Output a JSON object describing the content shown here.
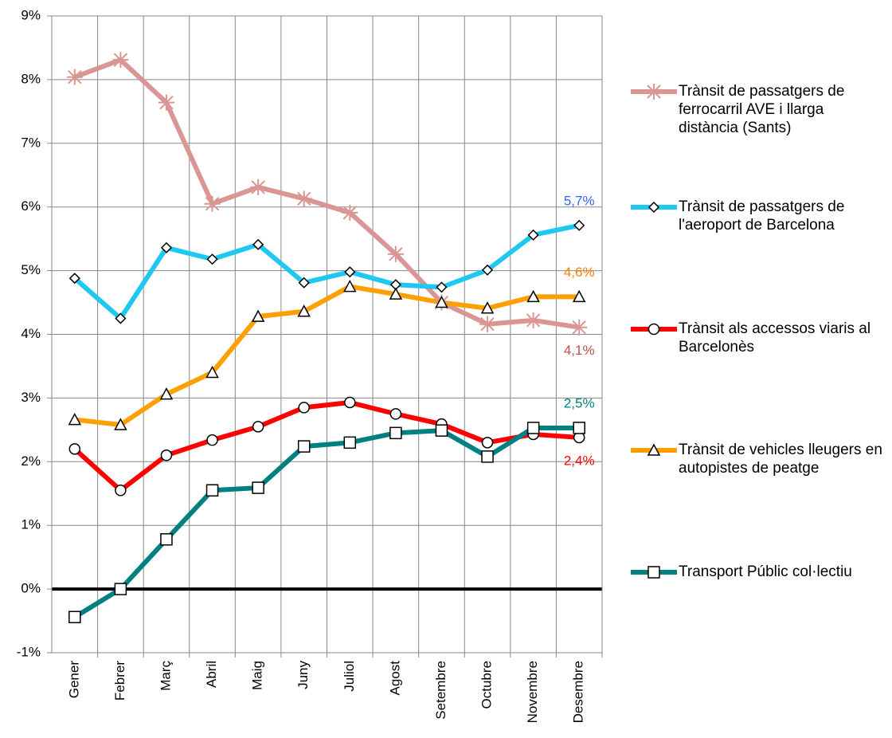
{
  "chart_data": {
    "type": "line",
    "categories": [
      "Gener",
      "Febrer",
      "Març",
      "Abril",
      "Maig",
      "Juny",
      "Juliol",
      "Agost",
      "Setembre",
      "Octubre",
      "Novembre",
      "Desembre"
    ],
    "ylim": [
      -1,
      9
    ],
    "yticks": [
      {
        "value": -1,
        "label": "-1%"
      },
      {
        "value": 0,
        "label": "0%"
      },
      {
        "value": 1,
        "label": "1%"
      },
      {
        "value": 2,
        "label": "2%"
      },
      {
        "value": 3,
        "label": "3%"
      },
      {
        "value": 4,
        "label": "4%"
      },
      {
        "value": 5,
        "label": "5%"
      },
      {
        "value": 6,
        "label": "6%"
      },
      {
        "value": 7,
        "label": "7%"
      },
      {
        "value": 8,
        "label": "8%"
      },
      {
        "value": 9,
        "label": "9%"
      }
    ],
    "grid": true,
    "legend": "right",
    "series": [
      {
        "name": "Trànsit de passatgers de ferrocarril AVE i llarga distància (Sants)",
        "color": "#d99694",
        "label_color": "#c0504d",
        "marker": "asterisk",
        "values": [
          8.04,
          8.31,
          7.64,
          6.05,
          6.31,
          6.13,
          5.91,
          5.26,
          4.5,
          4.16,
          4.22,
          4.11
        ],
        "value_labels": [
          null,
          null,
          null,
          null,
          null,
          null,
          null,
          null,
          null,
          null,
          null,
          "4,1%"
        ]
      },
      {
        "name": "Trànsit de passatgers de l'aeroport de Barcelona",
        "color": "#1ec8f0",
        "label_color": "#3366ff",
        "marker": "diamond",
        "values": [
          4.88,
          4.25,
          5.36,
          5.18,
          5.41,
          4.81,
          4.98,
          4.78,
          4.74,
          5.01,
          5.56,
          5.71
        ],
        "value_labels": [
          null,
          null,
          null,
          null,
          null,
          null,
          null,
          null,
          null,
          null,
          null,
          "5,7%"
        ]
      },
      {
        "name": "Trànsit als accessos viaris al Barcelonès",
        "color": "#ff0000",
        "label_color": "#ff0000",
        "marker": "circle",
        "values": [
          2.2,
          1.55,
          2.1,
          2.34,
          2.55,
          2.85,
          2.93,
          2.75,
          2.59,
          2.3,
          2.43,
          2.38
        ],
        "value_labels": [
          null,
          null,
          null,
          null,
          null,
          null,
          null,
          null,
          null,
          null,
          null,
          "2,4%"
        ]
      },
      {
        "name": "Trànsit de vehicles lleugers en autopistes de peatge",
        "color": "#ffa000",
        "label_color": "#ff8000",
        "marker": "triangle",
        "values": [
          2.66,
          2.58,
          3.06,
          3.4,
          4.28,
          4.36,
          4.75,
          4.63,
          4.5,
          4.41,
          4.59,
          4.59
        ],
        "value_labels": [
          null,
          null,
          null,
          null,
          null,
          null,
          null,
          null,
          null,
          null,
          null,
          "4,6%"
        ]
      },
      {
        "name": "Transport Públic col·lectiu",
        "color": "#008080",
        "label_color": "#008080",
        "marker": "square",
        "values": [
          -0.44,
          0,
          0.78,
          1.55,
          1.59,
          2.24,
          2.3,
          2.45,
          2.49,
          2.08,
          2.53,
          2.53
        ],
        "value_labels": [
          null,
          null,
          null,
          null,
          null,
          null,
          null,
          null,
          null,
          null,
          null,
          "2,5%"
        ]
      }
    ]
  }
}
